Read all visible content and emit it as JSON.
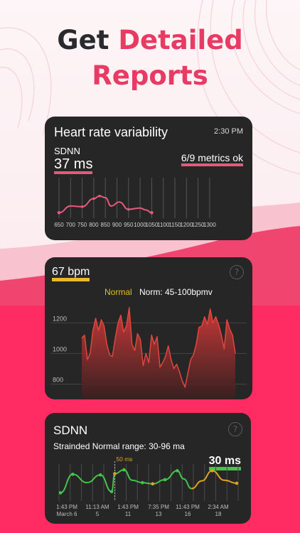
{
  "headline": {
    "part1": "Get",
    "part2": "Detailed",
    "part3": "Reports"
  },
  "hrv_card": {
    "title": "Heart rate variability",
    "time": "2:30 PM",
    "metric_label": "SDNN",
    "value": "37 ms",
    "status": "6/9 metrics ok",
    "x_labels": [
      "650",
      "700",
      "750",
      "800",
      "850",
      "900",
      "950",
      "1000",
      "1050",
      "1100",
      "1150",
      "1200",
      "1250",
      "1300"
    ],
    "points": [
      {
        "x": 650,
        "y": 0.1
      },
      {
        "x": 700,
        "y": 0.3
      },
      {
        "x": 750,
        "y": 0.28
      },
      {
        "x": 800,
        "y": 0.52
      },
      {
        "x": 825,
        "y": 0.6
      },
      {
        "x": 850,
        "y": 0.55
      },
      {
        "x": 875,
        "y": 0.3
      },
      {
        "x": 910,
        "y": 0.42
      },
      {
        "x": 950,
        "y": 0.2
      },
      {
        "x": 1000,
        "y": 0.24
      },
      {
        "x": 1025,
        "y": 0.18
      },
      {
        "x": 1050,
        "y": 0.1
      }
    ]
  },
  "bpm_card": {
    "value": "67 bpm",
    "help": "?",
    "status": "Normal",
    "norm": "Norm: 45-100bpmv",
    "y_labels": [
      "1200",
      "1000",
      "800"
    ],
    "y_ticks": [
      1200,
      1000,
      800
    ],
    "y_range": [
      700,
      1350
    ],
    "series": [
      1100,
      1120,
      960,
      1000,
      1150,
      1230,
      1150,
      1220,
      1180,
      1060,
      990,
      980,
      1100,
      1200,
      1250,
      1140,
      1180,
      1300,
      1060,
      1020,
      1130,
      1090,
      920,
      1000,
      940,
      1120,
      1060,
      1110,
      910,
      940,
      980,
      1050,
      960,
      900,
      930,
      880,
      820,
      780,
      870,
      960,
      990,
      1060,
      1170,
      1180,
      1240,
      1190,
      1290,
      1200,
      1240,
      1190,
      1120,
      1030,
      1220,
      1160,
      1120,
      1000
    ]
  },
  "sdnn_card": {
    "title": "SDNN",
    "help": "?",
    "range": "Strainded Normal range: 30-96 ma",
    "value": "30 ms",
    "marker": "50 ms",
    "x_labels": [
      {
        "time": "1:43 PM",
        "date": "March 6"
      },
      {
        "time": "11:13 AM",
        "date": "5"
      },
      {
        "time": "1:43 PM",
        "date": "11"
      },
      {
        "time": "7:35 PM",
        "date": "13"
      },
      {
        "time": "11:43 PM",
        "date": "16"
      },
      {
        "time": "2:34 AM",
        "date": "18"
      }
    ],
    "green_points": [
      [
        0,
        0.18
      ],
      [
        0.6,
        0.8
      ],
      [
        1.3,
        0.52
      ],
      [
        1.95,
        0.78
      ],
      [
        2.5,
        0.22
      ],
      [
        2.65,
        0.82
      ],
      [
        3.1,
        0.95
      ],
      [
        3.5,
        0.6
      ],
      [
        4.0,
        0.52
      ],
      [
        4.5,
        0.48
      ],
      [
        5.1,
        0.62
      ],
      [
        5.7,
        0.92
      ],
      [
        6.0,
        0.65
      ],
      [
        6.4,
        0.32
      ]
    ],
    "orange_points": [
      [
        6.4,
        0.32
      ],
      [
        6.9,
        0.58
      ],
      [
        7.4,
        0.92
      ],
      [
        8.0,
        0.6
      ],
      [
        8.6,
        0.5
      ]
    ]
  },
  "colors": {
    "pink": "#e83a63",
    "dark": "#2a2a2e",
    "card": "#262626",
    "line_red": "#e35a7c",
    "yellow": "#e8b92c",
    "green": "#43c44a",
    "orange": "#e2a21e"
  }
}
